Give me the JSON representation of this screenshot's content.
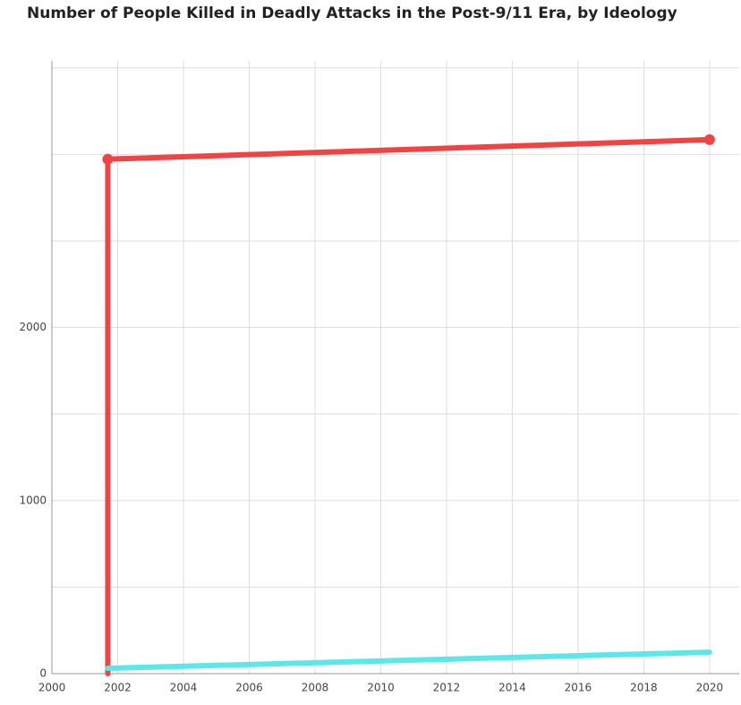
{
  "chart_data": {
    "type": "line",
    "title": "Number of People Killed in Deadly Attacks in the Post-9/11 Era, by Ideology",
    "xlim": [
      2000,
      2020.9
    ],
    "ylim": [
      0,
      3540
    ],
    "xticks": [
      2000,
      2002,
      2004,
      2006,
      2008,
      2010,
      2012,
      2014,
      2016,
      2018,
      2020
    ],
    "yticks": [
      0,
      1000,
      2000
    ],
    "y_minor_grid": [
      500,
      1500,
      2500,
      3000,
      3500
    ],
    "grid": true,
    "series": [
      {
        "color": "#f04444",
        "x": [
          2001.7,
          2001.7,
          2020
        ],
        "values": [
          0,
          2972,
          3085
        ],
        "markers": [
          false,
          true,
          true
        ]
      },
      {
        "color": "#5ce8ea",
        "x": [
          2001.7,
          2020
        ],
        "values": [
          31,
          124
        ],
        "markers": [
          false,
          false
        ]
      }
    ]
  }
}
